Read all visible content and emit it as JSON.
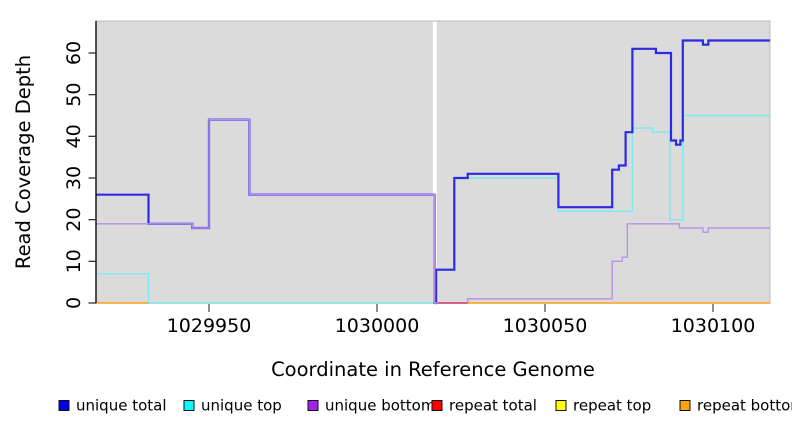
{
  "chart_data": {
    "type": "line",
    "title": "",
    "xlabel": "Coordinate in Reference Genome",
    "ylabel": "Read Coverage Depth",
    "xlim": [
      1029916,
      1030117
    ],
    "ylim": [
      0,
      68
    ],
    "x_ticks": [
      1029950,
      1030000,
      1030050,
      1030100
    ],
    "y_ticks": [
      0,
      10,
      20,
      30,
      40,
      50,
      60
    ],
    "grid": false,
    "legend_position": "bottom",
    "panel_background": "#DBDBDB",
    "white_gap_x": [
      1030017,
      1030018
    ],
    "draw_order": [
      "repeat top",
      "unique top",
      "unique total",
      "unique bottom",
      "repeat total",
      "repeat bottom"
    ],
    "series": [
      {
        "name": "unique total",
        "legend_color": "#0000EE",
        "line_color": "#2B2BE4",
        "line_width": 2.2,
        "segments": [
          {
            "steps": [
              [
                1029916,
                26
              ],
              [
                1029932,
                19
              ],
              [
                1029945,
                18
              ],
              [
                1029950,
                44
              ],
              [
                1029962,
                26
              ],
              [
                1030017.15,
                0
              ],
              [
                1030017.6,
                8
              ],
              [
                1030023,
                30
              ],
              [
                1030027,
                31
              ],
              [
                1030054,
                23
              ],
              [
                1030070,
                32
              ],
              [
                1030072,
                33
              ],
              [
                1030074,
                41
              ],
              [
                1030076,
                61
              ],
              [
                1030083,
                60
              ],
              [
                1030087.5,
                39
              ],
              [
                1030089,
                38
              ],
              [
                1030090.3,
                39
              ],
              [
                1030091,
                63
              ],
              [
                1030097,
                62
              ],
              [
                1030098.6,
                63
              ]
            ],
            "x_end": 1030117
          }
        ]
      },
      {
        "name": "unique top",
        "legend_color": "#00FFFF",
        "line_color": "#7FE9EE",
        "line_width": 1.4,
        "segments": [
          {
            "steps": [
              [
                1029916,
                7
              ],
              [
                1029932,
                0
              ],
              [
                1030017.6,
                8
              ],
              [
                1030023,
                30
              ],
              [
                1030054,
                22
              ],
              [
                1030076,
                42
              ],
              [
                1030082,
                41
              ],
              [
                1030087.2,
                20
              ],
              [
                1030091,
                45
              ]
            ],
            "x_end": 1030117
          }
        ]
      },
      {
        "name": "unique bottom",
        "legend_color": "#A020F0",
        "line_color": "#BB91E8",
        "line_width": 1.4,
        "segments": [
          {
            "steps": [
              [
                1029916,
                19
              ],
              [
                1029945,
                18
              ],
              [
                1029950,
                44
              ],
              [
                1029962,
                26
              ],
              [
                1030017.15,
                0
              ],
              [
                1030027,
                1
              ],
              [
                1030070,
                10
              ],
              [
                1030073,
                11
              ],
              [
                1030074.5,
                19
              ],
              [
                1030090,
                18
              ],
              [
                1030097,
                17
              ],
              [
                1030098.6,
                18
              ]
            ],
            "x_end": 1030117
          }
        ]
      },
      {
        "name": "repeat total",
        "legend_color": "#FF0000",
        "line_color": "#D8406A",
        "line_width": 1.4,
        "segments": [
          {
            "steps": [
              [
                1030018,
                0
              ]
            ],
            "x_end": 1030027
          }
        ]
      },
      {
        "name": "repeat top",
        "legend_color": "#FFFF00",
        "line_color": "#A3D9A0",
        "line_width": 1.4,
        "segments": [
          {
            "steps": [
              [
                1029932,
                0
              ]
            ],
            "x_end": 1030016.7
          }
        ]
      },
      {
        "name": "repeat bottom",
        "legend_color": "#FFA500",
        "line_color": "#FFA216",
        "line_width": 1.6,
        "segments": [
          {
            "steps": [
              [
                1029916,
                0
              ]
            ],
            "x_end": 1029932
          },
          {
            "steps": [
              [
                1030027,
                0
              ]
            ],
            "x_end": 1030117
          }
        ]
      }
    ]
  }
}
